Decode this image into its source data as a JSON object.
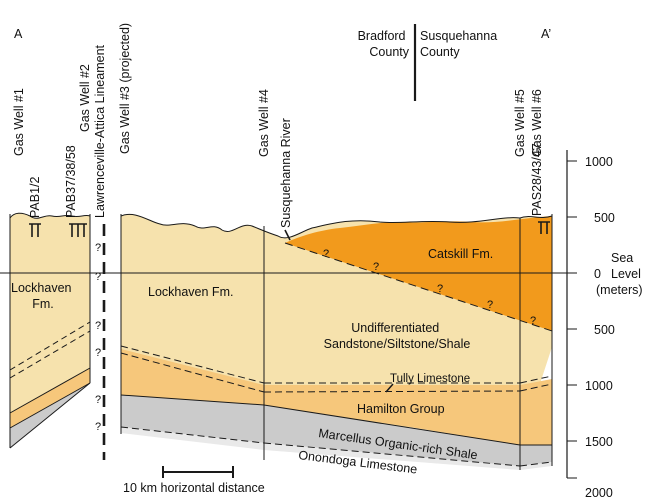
{
  "colors": {
    "lockhaven": "#f6e2ad",
    "catskill": "#f29a1c",
    "catskill_light": "#f6b05a",
    "hamilton": "#f6c77b",
    "marcellus": "#cbcbcb",
    "onondaga": "#e9e9e9",
    "line": "#1a1a1a"
  },
  "corners": {
    "left": "A",
    "right": "A’"
  },
  "county": {
    "west": "Bradford\nCounty",
    "east": "Susquehanna\nCounty"
  },
  "wells": {
    "gw1": "Gas Well #1",
    "gw2": "Gas Well #2",
    "gw3": "Gas Well #3 (projected)",
    "gw4": "Gas Well #4",
    "gw5": "Gas Well #5",
    "gw6": "Gas Well #6"
  },
  "well_ids": {
    "pab12": "PAB1/2",
    "pab37": "PAB37/38/58",
    "pas28": "PAS28/43/47"
  },
  "lineament": "Lawrenceville-Attica Lineament",
  "river": "Susquehanna River",
  "formations": {
    "lockhaven_left": "Lockhaven\nFm.",
    "lockhaven_main": "Lockhaven Fm.",
    "catskill": "Catskill Fm.",
    "undiff": "Undifferentiated\nSandstone/Siltstone/Shale",
    "tully": "Tully Limestone",
    "hamilton": "Hamilton Group",
    "marcellus": "Marcellus Organic-rich Shale",
    "onondaga": "Onondoga Limestone"
  },
  "scale_bar": "10 km horizontal distance",
  "axis": {
    "ticks": [
      "1000",
      "500",
      "0",
      "500",
      "1000",
      "1500",
      "2000"
    ],
    "label": "Sea\nLevel\n(meters)"
  },
  "uncertainty_mark": "?"
}
